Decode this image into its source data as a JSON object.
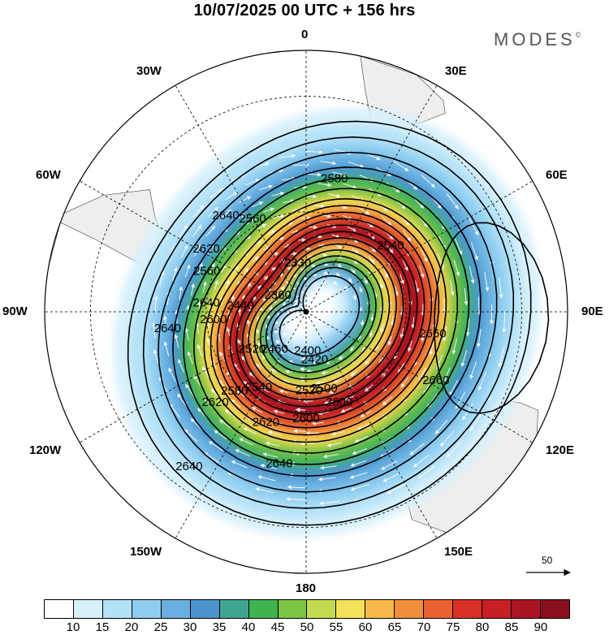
{
  "title": "10/07/2025  00 UTC  + 156 hrs",
  "brand": "MODES",
  "brand_mark": "©",
  "longitude_labels": {
    "lon_0": "0",
    "lon_30e": "30E",
    "lon_60e": "60E",
    "lon_90e": "90E",
    "lon_120e": "120E",
    "lon_150e": "150E",
    "lon_180": "180",
    "lon_150w": "150W",
    "lon_120w": "120W",
    "lon_90w": "90W",
    "lon_60w": "60W",
    "lon_30w": "30W"
  },
  "contour_labels": [
    {
      "text": "2640",
      "lon": -40,
      "lat": -53
    },
    {
      "text": "2580",
      "lon": 12,
      "lat": -50
    },
    {
      "text": "2560",
      "lon": -30,
      "lat": -58
    },
    {
      "text": "2540",
      "lon": 52,
      "lat": -58
    },
    {
      "text": "2620",
      "lon": -58,
      "lat": -55
    },
    {
      "text": "2560",
      "lon": -68,
      "lat": -58
    },
    {
      "text": "2330",
      "lon": -10,
      "lat": -75
    },
    {
      "text": "2360",
      "lon": -60,
      "lat": -80
    },
    {
      "text": "2440",
      "lon": -85,
      "lat": -70
    },
    {
      "text": "2640",
      "lon": -85,
      "lat": -60
    },
    {
      "text": "2660",
      "lon": 100,
      "lat": -52
    },
    {
      "text": "2660",
      "lon": 118,
      "lat": -47
    },
    {
      "text": "2420",
      "lon": 170,
      "lat": -75
    },
    {
      "text": "2400",
      "lon": 178,
      "lat": -78
    },
    {
      "text": "2460",
      "lon": -140,
      "lat": -75
    },
    {
      "text": "2520",
      "lon": -125,
      "lat": -70
    },
    {
      "text": "2600",
      "lon": -95,
      "lat": -62
    },
    {
      "text": "2640",
      "lon": -97,
      "lat": -49
    },
    {
      "text": "2520",
      "lon": 178,
      "lat": -66
    },
    {
      "text": "2500",
      "lon": 167,
      "lat": -66
    },
    {
      "text": "2540",
      "lon": -148,
      "lat": -63
    },
    {
      "text": "2580",
      "lon": -138,
      "lat": -58
    },
    {
      "text": "2600",
      "lon": 160,
      "lat": -61
    },
    {
      "text": "2600",
      "lon": 180,
      "lat": -58
    },
    {
      "text": "2620",
      "lon": -135,
      "lat": -52
    },
    {
      "text": "2620",
      "lon": -160,
      "lat": -55
    },
    {
      "text": "2640",
      "lon": -170,
      "lat": -45
    },
    {
      "text": "2640",
      "lon": -143,
      "lat": -35
    }
  ],
  "colorbar": {
    "colors": [
      "#ffffff",
      "#d6f0fc",
      "#b3e2f8",
      "#8fcdf0",
      "#69b0e0",
      "#4b93cc",
      "#3fa58e",
      "#40b34f",
      "#7cc443",
      "#c2da4f",
      "#f5e05a",
      "#f6b84a",
      "#f08e3c",
      "#e8612e",
      "#d93028",
      "#c81f27",
      "#ab1423",
      "#8a0f1d"
    ],
    "tick_labels": [
      "10",
      "15",
      "20",
      "25",
      "30",
      "35",
      "40",
      "45",
      "50",
      "55",
      "60",
      "65",
      "70",
      "75",
      "80",
      "85",
      "90"
    ]
  },
  "reference_vector": {
    "value": "50"
  }
}
